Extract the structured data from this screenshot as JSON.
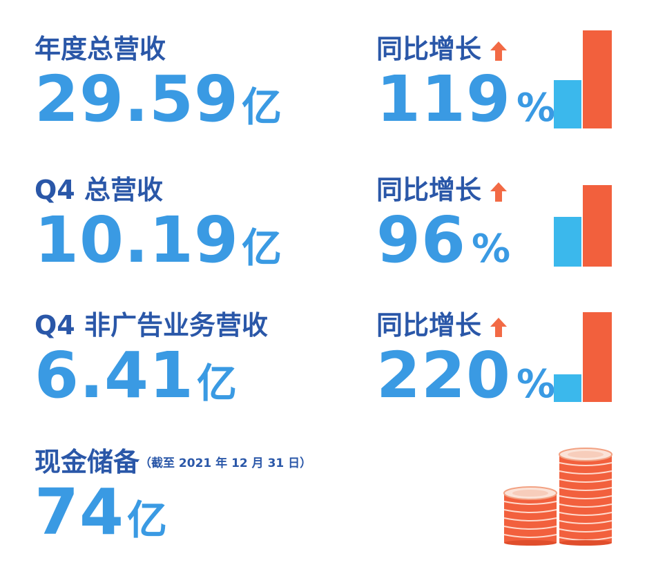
{
  "metrics": [
    {
      "label": "年度总营收",
      "value": "29.59",
      "unit": "亿",
      "growth_label": "同比增长",
      "growth_value": "119",
      "growth_unit": "%",
      "growth_ratio": 2.19
    },
    {
      "label": "Q4 总营收",
      "value": "10.19",
      "unit": "亿",
      "growth_label": "同比增长",
      "growth_value": "96",
      "growth_unit": "%",
      "growth_ratio": 1.96
    },
    {
      "label": "Q4 非广告业务营收",
      "value": "6.41",
      "unit": "亿",
      "growth_label": "同比增长",
      "growth_value": "220",
      "growth_unit": "%",
      "growth_ratio": 3.2
    }
  ],
  "cash": {
    "label": "现金储备",
    "note": "（截至 2021 年 12 月 31 日）",
    "value": "74",
    "unit": "亿"
  },
  "icons": {
    "growth_arrow": "up-arrow-icon",
    "cash": "coin-stack-icon"
  },
  "colors": {
    "label": "#2a57a8",
    "value": "#3a9ae3",
    "bar_prev": "#3bb8ec",
    "bar_curr": "#f2603d",
    "arrow": "#f26a45",
    "coin": "#f2603d"
  }
}
